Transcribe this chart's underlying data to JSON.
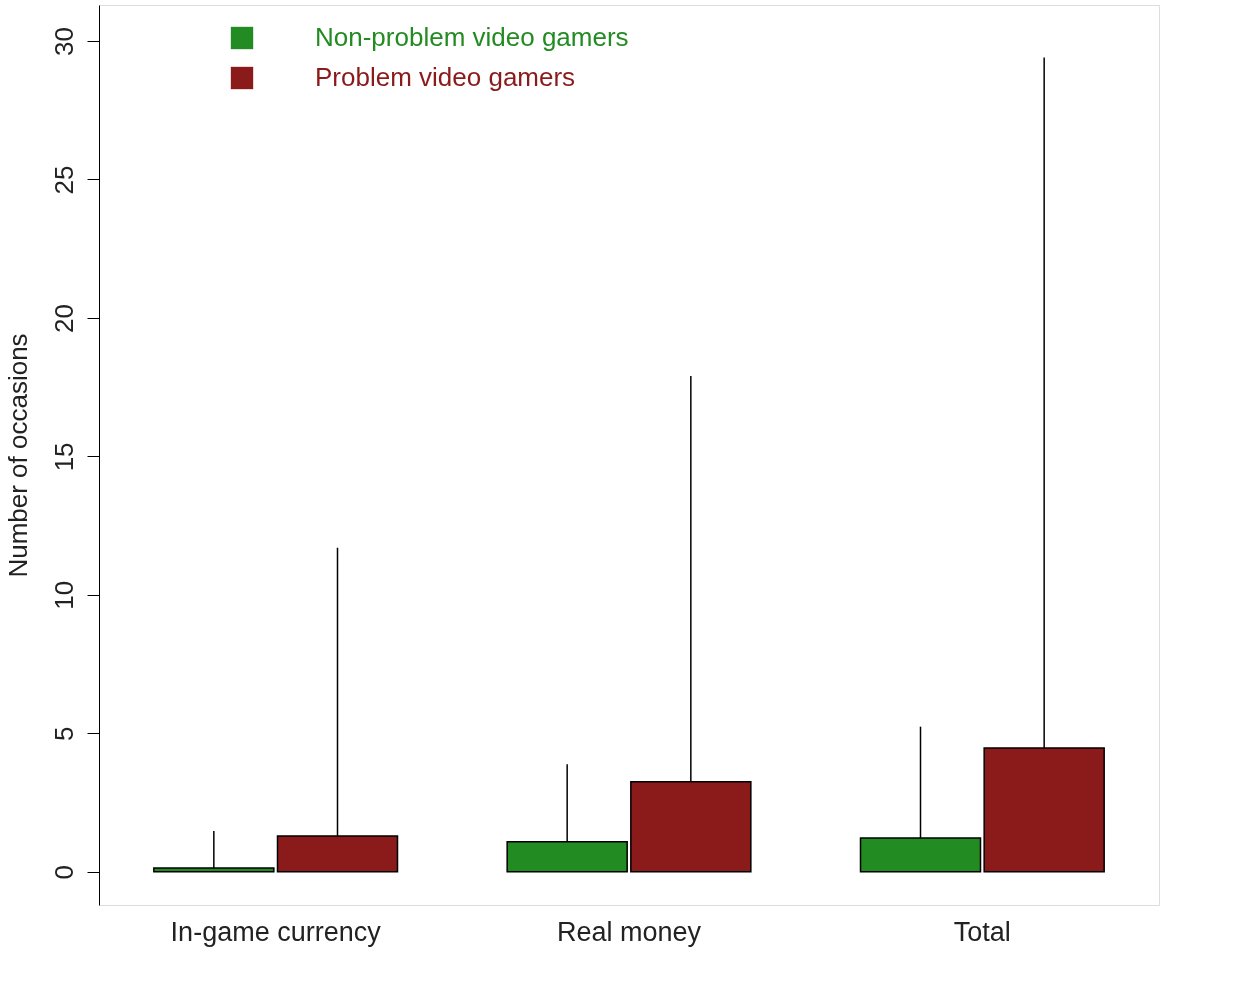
{
  "chart_data": {
    "type": "bar",
    "ylabel": "Number of occasions",
    "categories": [
      "In-game currency",
      "Real money",
      "Total"
    ],
    "series": [
      {
        "name": "Non-problem video gamers",
        "color": "#228b22",
        "values": [
          0.14,
          1.08,
          1.22
        ],
        "errors": [
          [
            0.14,
            1.47
          ],
          [
            1.08,
            3.88
          ],
          [
            1.22,
            5.24
          ]
        ]
      },
      {
        "name": "Problem video gamers",
        "color": "#8b1a1a",
        "values": [
          1.29,
          3.25,
          4.47
        ],
        "errors": [
          [
            1.29,
            11.7
          ],
          [
            3.25,
            17.9
          ],
          [
            4.47,
            29.4
          ]
        ]
      }
    ],
    "ylim": [
      -1.2,
      31.3
    ],
    "yticks": [
      0,
      5,
      10,
      15,
      20,
      25,
      30
    ],
    "grid": false,
    "legend": "top left"
  }
}
